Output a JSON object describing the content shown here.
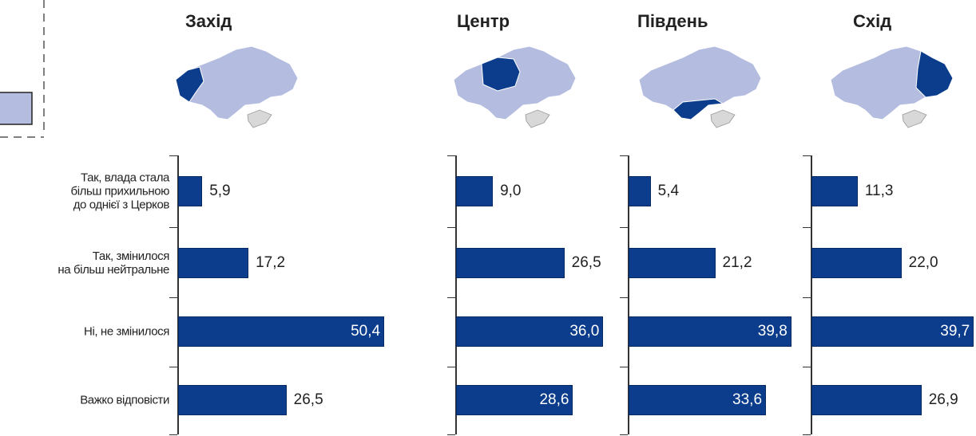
{
  "chart_data": [
    {
      "type": "bar",
      "orientation": "horizontal",
      "title": "Захід",
      "categories": [
        "Так, влада стала\nбільш прихильною\nдо однієї з Церков",
        "Так, змінилося\nна більш нейтральне",
        "Ні, не змінилося",
        "Важко відповісти"
      ],
      "values": [
        5.9,
        17.2,
        50.4,
        26.5
      ],
      "value_labels": [
        "5,9",
        "17,2",
        "50,4",
        "26,5"
      ],
      "color": "#0b3d8c",
      "xlim": [
        0,
        50
      ]
    },
    {
      "type": "bar",
      "orientation": "horizontal",
      "title": "Центр",
      "values": [
        9.0,
        26.5,
        36.0,
        28.6
      ],
      "value_labels": [
        "9,0",
        "26,5",
        "36,0",
        "28,6"
      ],
      "color": "#0b3d8c",
      "xlim": [
        0,
        50
      ]
    },
    {
      "type": "bar",
      "orientation": "horizontal",
      "title": "Південь",
      "values": [
        5.4,
        21.2,
        39.8,
        33.6
      ],
      "value_labels": [
        "5,4",
        "21,2",
        "39,8",
        "33,6"
      ],
      "color": "#0b3d8c",
      "xlim": [
        0,
        50
      ]
    },
    {
      "type": "bar",
      "orientation": "horizontal",
      "title": "Схід",
      "values": [
        11.3,
        22.0,
        39.7,
        26.9
      ],
      "value_labels": [
        "11,3",
        "22,0",
        "39,7",
        "26,9"
      ],
      "color": "#0b3d8c",
      "xlim": [
        0,
        50
      ]
    }
  ]
}
